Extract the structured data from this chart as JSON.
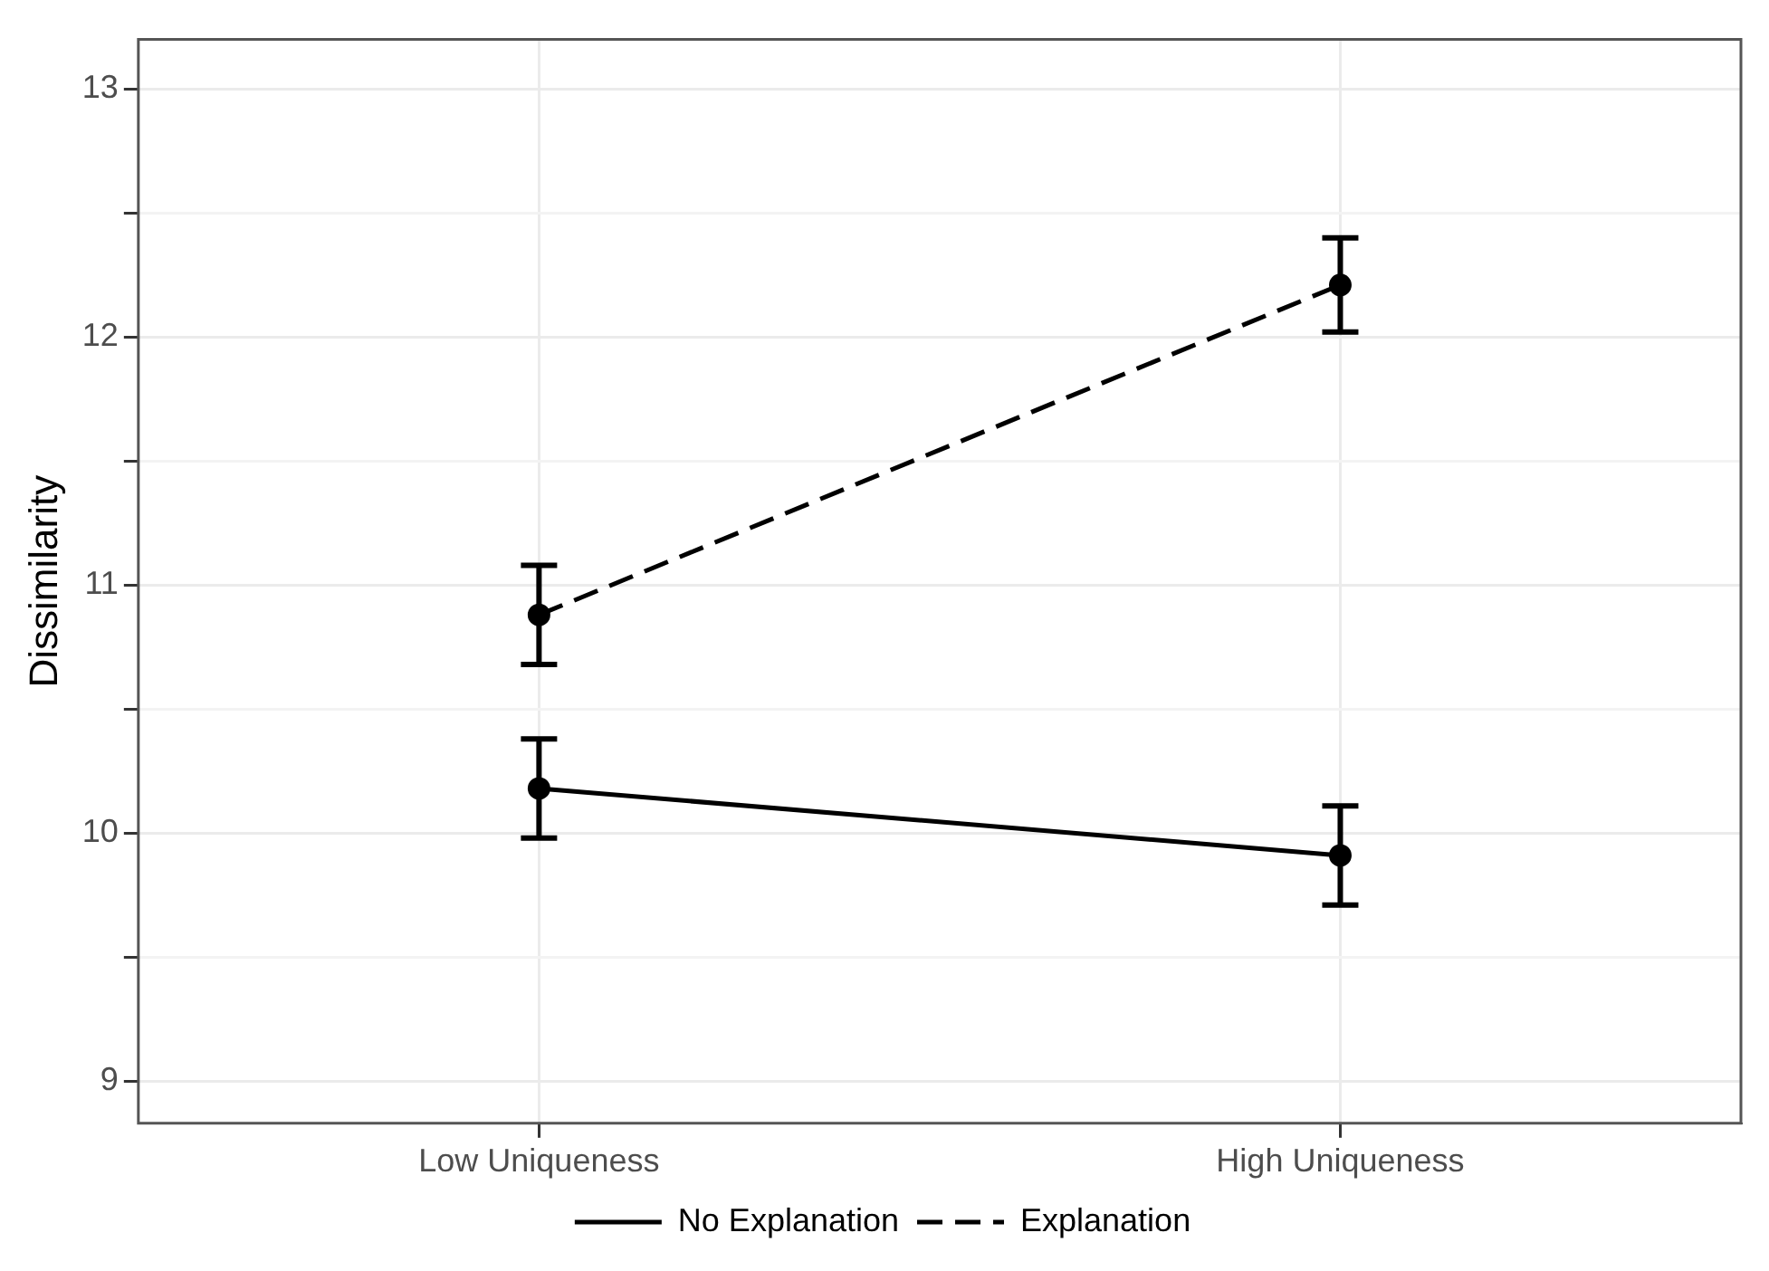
{
  "chart_data": {
    "type": "line",
    "ylabel": "Dissimilarity",
    "categories": [
      "Low Uniqueness",
      "High Uniqueness"
    ],
    "series": [
      {
        "name": "No Explanation",
        "color": "#000000",
        "line_style": "solid",
        "values": [
          10.18,
          9.91
        ],
        "errors": [
          [
            9.98,
            10.38
          ],
          [
            9.71,
            10.11
          ]
        ]
      },
      {
        "name": "Explanation",
        "color": "#000000",
        "line_style": "dashed",
        "values": [
          10.88,
          12.21
        ],
        "errors": [
          [
            10.68,
            11.08
          ],
          [
            12.02,
            12.4
          ]
        ]
      }
    ],
    "ylim": [
      8.83,
      13.2
    ],
    "yticks": [
      9,
      {
        "value": 9.5,
        "label": null
      },
      10,
      {
        "value": 10.5,
        "label": null
      },
      11,
      {
        "value": 11.5,
        "label": null
      },
      12,
      {
        "value": 12.5,
        "label": null
      },
      13
    ],
    "grid": true,
    "legend": "bottom",
    "marker": "circle"
  }
}
